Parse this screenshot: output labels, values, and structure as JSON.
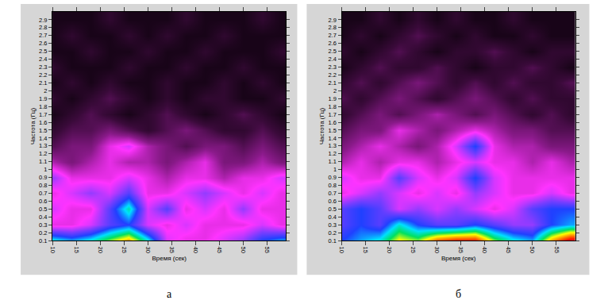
{
  "chart_data": [
    {
      "type": "heatmap",
      "label": "а",
      "x_label": "Время (сек)",
      "y_label": "Частота (Гц)",
      "x": [
        10,
        14,
        18,
        22,
        26,
        30,
        34,
        38,
        42,
        46,
        50,
        54,
        58
      ],
      "y": [
        0.1,
        0.3,
        0.5,
        0.7,
        0.9,
        1.1,
        1.3,
        1.5,
        1.7,
        1.9,
        2.1,
        2.3,
        2.5,
        2.7,
        2.9
      ],
      "z": [
        [
          0.6,
          0.55,
          0.6,
          0.7,
          0.8,
          0.6,
          0.35,
          0.3,
          0.3,
          0.35,
          0.4,
          0.5,
          0.55
        ],
        [
          0.3,
          0.3,
          0.35,
          0.45,
          0.5,
          0.35,
          0.3,
          0.35,
          0.3,
          0.3,
          0.3,
          0.35,
          0.3
        ],
        [
          0.35,
          0.3,
          0.3,
          0.45,
          0.62,
          0.35,
          0.45,
          0.3,
          0.35,
          0.3,
          0.4,
          0.3,
          0.3
        ],
        [
          0.3,
          0.35,
          0.4,
          0.35,
          0.45,
          0.3,
          0.3,
          0.35,
          0.4,
          0.35,
          0.3,
          0.35,
          0.3
        ],
        [
          0.4,
          0.3,
          0.3,
          0.3,
          0.35,
          0.3,
          0.25,
          0.3,
          0.3,
          0.25,
          0.3,
          0.3,
          0.35
        ],
        [
          0.25,
          0.2,
          0.25,
          0.3,
          0.25,
          0.25,
          0.2,
          0.25,
          0.3,
          0.2,
          0.2,
          0.25,
          0.2
        ],
        [
          0.15,
          0.2,
          0.2,
          0.3,
          0.35,
          0.25,
          0.2,
          0.15,
          0.2,
          0.2,
          0.15,
          0.2,
          0.15
        ],
        [
          0.1,
          0.15,
          0.15,
          0.2,
          0.15,
          0.1,
          0.15,
          0.2,
          0.15,
          0.1,
          0.1,
          0.15,
          0.1
        ],
        [
          0.05,
          0.1,
          0.15,
          0.1,
          0.05,
          0.1,
          0.15,
          0.1,
          0.05,
          0.1,
          0.15,
          0.1,
          0.05
        ],
        [
          0.1,
          0.05,
          0.1,
          0.15,
          0.1,
          0.05,
          0.1,
          0.05,
          0.1,
          0.1,
          0.05,
          0.05,
          0.1
        ],
        [
          0.05,
          0.1,
          0.05,
          0.1,
          0.05,
          0.05,
          0.1,
          0.05,
          0.05,
          0.1,
          0.05,
          0.1,
          0.05
        ],
        [
          0.1,
          0.05,
          0.05,
          0.05,
          0.1,
          0.05,
          0.05,
          0.1,
          0.05,
          0.05,
          0.1,
          0.05,
          0.05
        ],
        [
          0.05,
          0.05,
          0.1,
          0.05,
          0.05,
          0.1,
          0.05,
          0.05,
          0.1,
          0.05,
          0.05,
          0.05,
          0.1
        ],
        [
          0.05,
          0.1,
          0.05,
          0.05,
          0.1,
          0.05,
          0.1,
          0.05,
          0.05,
          0.1,
          0.05,
          0.05,
          0.05
        ],
        [
          0.05,
          0.05,
          0.05,
          0.1,
          0.05,
          0.05,
          0.05,
          0.1,
          0.05,
          0.05,
          0.05,
          0.1,
          0.05
        ]
      ],
      "zlim": [
        0,
        1
      ],
      "xlim": [
        10,
        59
      ],
      "xticks": [
        10,
        15,
        20,
        25,
        30,
        35,
        40,
        45,
        50,
        55
      ],
      "ylim": [
        0.1,
        3
      ],
      "yticks": [
        0.1,
        0.2,
        0.3,
        0.4,
        0.5,
        0.6,
        0.7,
        0.8,
        0.9,
        1,
        1.1,
        1.2,
        1.3,
        1.4,
        1.5,
        1.6,
        1.7,
        1.8,
        1.9,
        2,
        2.1,
        2.2,
        2.3,
        2.4,
        2.5,
        2.6,
        2.7,
        2.8,
        2.9
      ]
    },
    {
      "type": "heatmap",
      "label": "б",
      "x_label": "Время (сек)",
      "y_label": "Частота (Гц)",
      "x": [
        10,
        14,
        18,
        22,
        26,
        30,
        34,
        38,
        42,
        46,
        50,
        54,
        58
      ],
      "y": [
        0.1,
        0.3,
        0.5,
        0.7,
        0.9,
        1.1,
        1.3,
        1.5,
        1.7,
        1.9,
        2.1,
        2.3,
        2.5,
        2.7,
        2.9
      ],
      "z": [
        [
          0.5,
          0.55,
          0.6,
          0.75,
          0.7,
          0.85,
          0.9,
          0.9,
          0.7,
          0.6,
          0.55,
          0.8,
          0.95
        ],
        [
          0.45,
          0.5,
          0.45,
          0.6,
          0.5,
          0.45,
          0.45,
          0.5,
          0.45,
          0.4,
          0.4,
          0.5,
          0.55
        ],
        [
          0.45,
          0.5,
          0.45,
          0.35,
          0.4,
          0.35,
          0.4,
          0.35,
          0.3,
          0.35,
          0.45,
          0.5,
          0.5
        ],
        [
          0.3,
          0.35,
          0.4,
          0.35,
          0.3,
          0.35,
          0.3,
          0.4,
          0.35,
          0.3,
          0.3,
          0.35,
          0.3
        ],
        [
          0.35,
          0.3,
          0.3,
          0.45,
          0.35,
          0.3,
          0.35,
          0.5,
          0.35,
          0.3,
          0.3,
          0.3,
          0.3
        ],
        [
          0.25,
          0.3,
          0.25,
          0.3,
          0.3,
          0.25,
          0.3,
          0.35,
          0.3,
          0.3,
          0.25,
          0.3,
          0.25
        ],
        [
          0.2,
          0.25,
          0.3,
          0.25,
          0.2,
          0.25,
          0.35,
          0.5,
          0.3,
          0.25,
          0.25,
          0.2,
          0.2
        ],
        [
          0.15,
          0.2,
          0.2,
          0.3,
          0.25,
          0.2,
          0.25,
          0.3,
          0.25,
          0.2,
          0.2,
          0.15,
          0.15
        ],
        [
          0.1,
          0.15,
          0.2,
          0.15,
          0.2,
          0.25,
          0.2,
          0.15,
          0.2,
          0.15,
          0.1,
          0.15,
          0.1
        ],
        [
          0.15,
          0.1,
          0.15,
          0.2,
          0.15,
          0.1,
          0.15,
          0.2,
          0.15,
          0.1,
          0.15,
          0.1,
          0.1
        ],
        [
          0.1,
          0.15,
          0.1,
          0.15,
          0.2,
          0.15,
          0.1,
          0.15,
          0.1,
          0.15,
          0.1,
          0.1,
          0.15
        ],
        [
          0.05,
          0.1,
          0.15,
          0.1,
          0.1,
          0.15,
          0.1,
          0.05,
          0.1,
          0.1,
          0.15,
          0.1,
          0.05
        ],
        [
          0.1,
          0.05,
          0.1,
          0.15,
          0.1,
          0.05,
          0.1,
          0.1,
          0.15,
          0.1,
          0.05,
          0.1,
          0.1
        ],
        [
          0.05,
          0.1,
          0.05,
          0.1,
          0.15,
          0.1,
          0.05,
          0.1,
          0.05,
          0.05,
          0.1,
          0.05,
          0.05
        ],
        [
          0.05,
          0.05,
          0.1,
          0.05,
          0.1,
          0.05,
          0.1,
          0.05,
          0.05,
          0.1,
          0.05,
          0.05,
          0.05
        ]
      ],
      "zlim": [
        0,
        1
      ],
      "xlim": [
        10,
        59
      ],
      "xticks": [
        10,
        15,
        20,
        25,
        30,
        35,
        40,
        45,
        50,
        55
      ],
      "ylim": [
        0.1,
        3
      ],
      "yticks": [
        0.1,
        0.2,
        0.3,
        0.4,
        0.5,
        0.6,
        0.7,
        0.8,
        0.9,
        1,
        1.1,
        1.2,
        1.3,
        1.4,
        1.5,
        1.6,
        1.7,
        1.8,
        1.9,
        2,
        2.1,
        2.2,
        2.3,
        2.4,
        2.5,
        2.6,
        2.7,
        2.8,
        2.9
      ]
    }
  ]
}
